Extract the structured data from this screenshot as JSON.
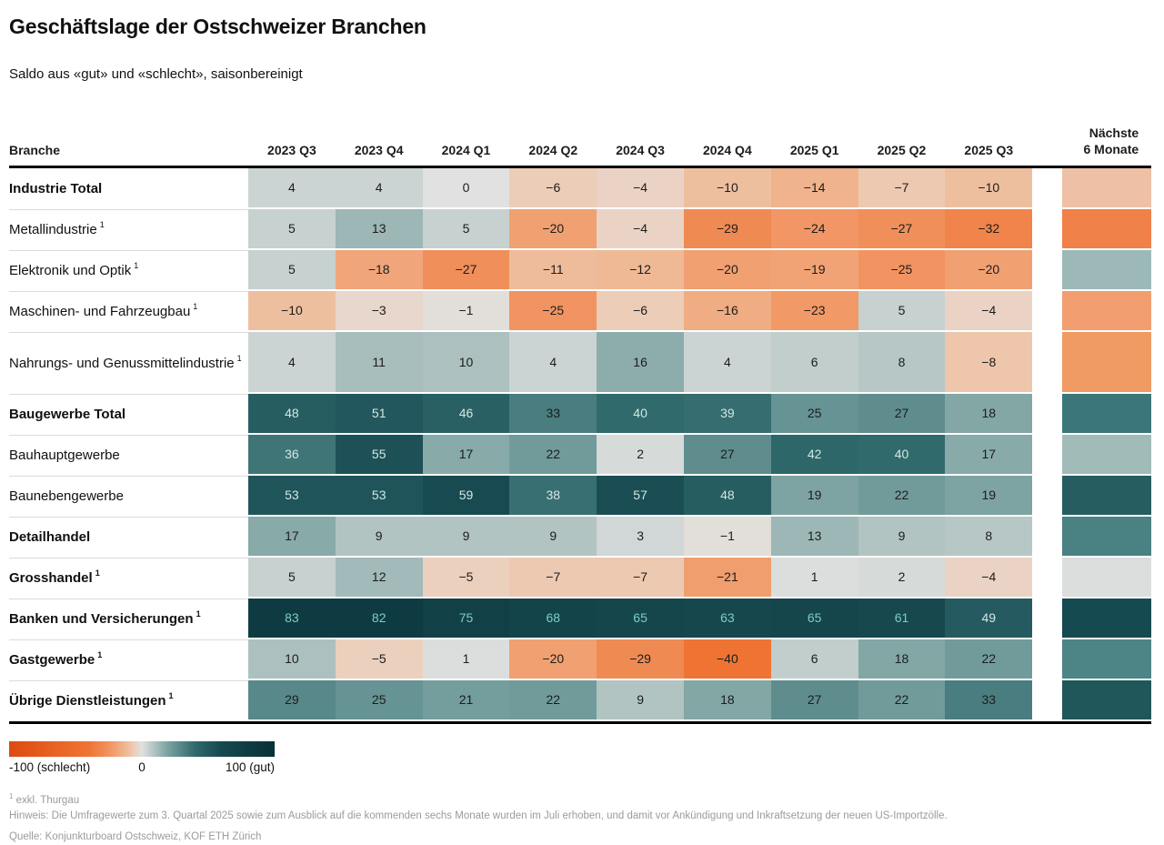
{
  "title": "Geschäftslage der Ostschweizer Branchen",
  "subtitle": "Saldo aus «gut» und «schlecht», saisonbereinigt",
  "chart_data": {
    "type": "heatmap",
    "row_header_label": "Branche",
    "columns": [
      "2023 Q3",
      "2023 Q4",
      "2024 Q1",
      "2024 Q2",
      "2024 Q3",
      "2024 Q4",
      "2025 Q1",
      "2025 Q2",
      "2025 Q3"
    ],
    "outlook_column_label": "Nächste\n6 Monate",
    "footnote_marker": "1",
    "value_range": [
      -100,
      100
    ],
    "rows": [
      {
        "label": "Industrie Total",
        "bold": true,
        "footnote": false,
        "values": [
          4,
          4,
          0,
          -6,
          -4,
          -10,
          -14,
          -7,
          -10
        ],
        "next6_color": "#eec0a5"
      },
      {
        "label": "Metallindustrie",
        "bold": false,
        "footnote": true,
        "values": [
          5,
          13,
          5,
          -20,
          -4,
          -29,
          -24,
          -27,
          -32
        ],
        "next6_color": "#f08148"
      },
      {
        "label": "Elektronik und Optik",
        "bold": false,
        "footnote": true,
        "values": [
          5,
          -18,
          -27,
          -11,
          -12,
          -20,
          -19,
          -25,
          -20
        ],
        "next6_color": "#9db9b7"
      },
      {
        "label": "Maschinen- und Fahrzeugbau",
        "bold": false,
        "footnote": true,
        "values": [
          -10,
          -3,
          -1,
          -25,
          -6,
          -16,
          -23,
          5,
          -4
        ],
        "next6_color": "#f29e70"
      },
      {
        "label": "Nahrungs- und Genussmittelindustrie",
        "bold": false,
        "footnote": true,
        "tall": true,
        "values": [
          4,
          11,
          10,
          4,
          16,
          4,
          6,
          8,
          -8
        ],
        "next6_color": "#f09a64"
      },
      {
        "label": "Baugewerbe Total",
        "bold": true,
        "footnote": false,
        "values": [
          48,
          51,
          46,
          33,
          40,
          39,
          25,
          27,
          18
        ],
        "next6_color": "#3b777a"
      },
      {
        "label": "Bauhauptgewerbe",
        "bold": false,
        "footnote": false,
        "values": [
          36,
          55,
          17,
          22,
          2,
          27,
          42,
          40,
          17
        ],
        "next6_color": "#a1bbb9"
      },
      {
        "label": "Baunebengewerbe",
        "bold": false,
        "footnote": false,
        "values": [
          53,
          53,
          59,
          38,
          57,
          48,
          19,
          22,
          19
        ],
        "next6_color": "#265d61"
      },
      {
        "label": "Detailhandel",
        "bold": true,
        "footnote": false,
        "values": [
          17,
          9,
          9,
          9,
          3,
          -1,
          13,
          9,
          8
        ],
        "next6_color": "#4a8183"
      },
      {
        "label": "Grosshandel",
        "bold": true,
        "footnote": true,
        "values": [
          5,
          12,
          -5,
          -7,
          -7,
          -21,
          1,
          2,
          -4
        ],
        "next6_color": "#dcdedd"
      },
      {
        "label": "Banken und Versicherungen",
        "bold": true,
        "footnote": true,
        "values": [
          83,
          82,
          75,
          68,
          65,
          63,
          65,
          61,
          49
        ],
        "next6_color": "#154a50"
      },
      {
        "label": "Gastgewerbe",
        "bold": true,
        "footnote": true,
        "values": [
          10,
          -5,
          1,
          -20,
          -29,
          -40,
          6,
          18,
          22
        ],
        "next6_color": "#4d8486"
      },
      {
        "label": "Übrige Dienstleistungen",
        "bold": true,
        "footnote": true,
        "values": [
          29,
          25,
          21,
          22,
          9,
          18,
          27,
          22,
          33
        ],
        "next6_color": "#20575b"
      }
    ],
    "colorscale": [
      {
        "v": -100,
        "c": "#dd4a12"
      },
      {
        "v": -40,
        "c": "#ef7434"
      },
      {
        "v": -30,
        "c": "#f08850"
      },
      {
        "v": -20,
        "c": "#f1a071"
      },
      {
        "v": -10,
        "c": "#eebf9f"
      },
      {
        "v": -5,
        "c": "#ecd0be"
      },
      {
        "v": 0,
        "c": "#e0e1e0"
      },
      {
        "v": 10,
        "c": "#acc1bf"
      },
      {
        "v": 20,
        "c": "#78a09f"
      },
      {
        "v": 40,
        "c": "#316a6d"
      },
      {
        "v": 60,
        "c": "#16494f"
      },
      {
        "v": 100,
        "c": "#083037"
      }
    ],
    "text_colors": {
      "dark": "#1c1c1c",
      "light": "#d3e7e4",
      "mint": "#7ecdc5"
    },
    "light_text_threshold": 35,
    "mint_text_threshold": 60,
    "legend": {
      "min_label": "-100 (schlecht)",
      "mid_label": "0",
      "max_label": "100 (gut)"
    }
  },
  "footnotes": {
    "marker": "1",
    "thurgau": "exkl. Thurgau",
    "hinweis": "Hinweis: Die Umfragewerte zum 3. Quartal 2025 sowie zum Ausblick auf die kommenden sechs Monate wurden im Juli erhoben, und damit vor Ankündigung und Inkraftsetzung der neuen US-Importzölle.",
    "quelle": "Quelle: Konjunkturboard Ostschweiz, KOF ETH Zürich"
  }
}
